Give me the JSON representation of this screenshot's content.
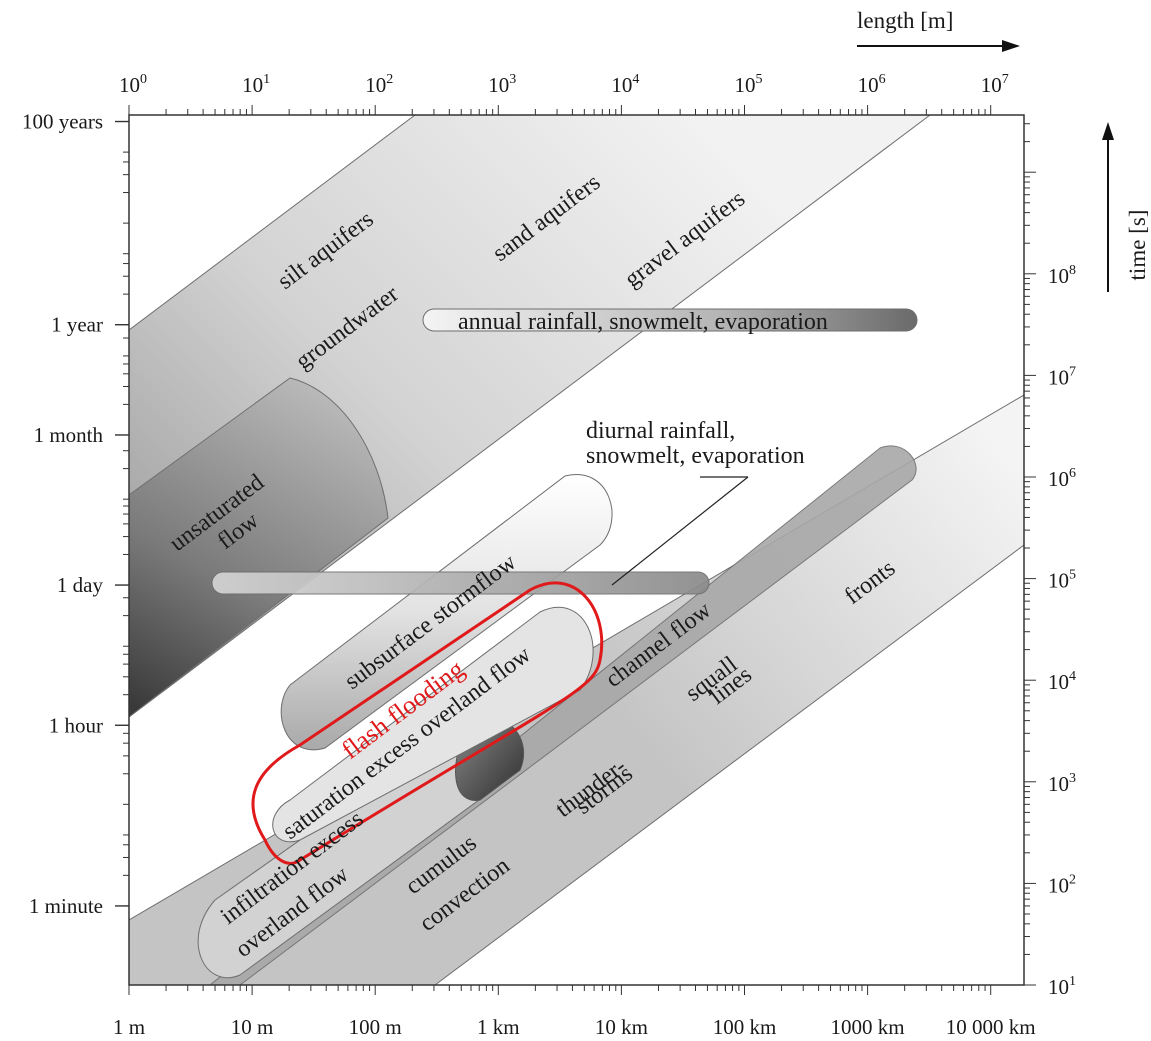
{
  "chart_data": {
    "type": "diagram",
    "x_axis": {
      "title": "length [m]",
      "scale": "log",
      "range": [
        1,
        20000000
      ],
      "top_ticks": [
        {
          "value": 1,
          "base": "10",
          "exp": "0"
        },
        {
          "value": 10,
          "base": "10",
          "exp": "1"
        },
        {
          "value": 100,
          "base": "10",
          "exp": "2"
        },
        {
          "value": 1000,
          "base": "10",
          "exp": "3"
        },
        {
          "value": 10000,
          "base": "10",
          "exp": "4"
        },
        {
          "value": 100000,
          "base": "10",
          "exp": "5"
        },
        {
          "value": 1000000,
          "base": "10",
          "exp": "6"
        },
        {
          "value": 10000000,
          "base": "10",
          "exp": "7"
        }
      ],
      "bottom_ticks": [
        {
          "value": 1,
          "label": "1 m"
        },
        {
          "value": 10,
          "label": "10 m"
        },
        {
          "value": 100,
          "label": "100 m"
        },
        {
          "value": 1000,
          "label": "1 km"
        },
        {
          "value": 10000,
          "label": "10 km"
        },
        {
          "value": 100000,
          "label": "100 km"
        },
        {
          "value": 1000000,
          "label": "1000 km"
        },
        {
          "value": 10000000,
          "label": "10 000 km"
        }
      ]
    },
    "y_axis": {
      "title": "time [s]",
      "scale": "log",
      "range": [
        10,
        3156000000
      ],
      "left_ticks": [
        {
          "value": 60,
          "label": "1 minute"
        },
        {
          "value": 3600,
          "label": "1 hour"
        },
        {
          "value": 86400,
          "label": "1 day"
        },
        {
          "value": 2592000,
          "label": "1 month"
        },
        {
          "value": 31536000,
          "label": "1 year"
        },
        {
          "value": 3153600000,
          "label": "100 years"
        }
      ],
      "right_ticks": [
        {
          "value": 10,
          "base": "10",
          "exp": "1"
        },
        {
          "value": 100,
          "base": "10",
          "exp": "2"
        },
        {
          "value": 1000,
          "base": "10",
          "exp": "3"
        },
        {
          "value": 10000,
          "base": "10",
          "exp": "4"
        },
        {
          "value": 100000,
          "base": "10",
          "exp": "5"
        },
        {
          "value": 1000000,
          "base": "10",
          "exp": "6"
        },
        {
          "value": 10000000,
          "base": "10",
          "exp": "7"
        },
        {
          "value": 100000000,
          "base": "10",
          "exp": "8"
        }
      ]
    },
    "regions": [
      {
        "name": "groundwater",
        "labels": [
          "silt aquifers",
          "sand aquifers",
          "gravel aquifers",
          "groundwater"
        ]
      },
      {
        "name": "unsaturated flow",
        "labels": [
          "unsaturated",
          "flow"
        ]
      },
      {
        "name": "annual rainfall, snowmelt, evaporation",
        "x_range": [
          200,
          2000000
        ],
        "time": 31536000
      },
      {
        "name": "diurnal rainfall, snowmelt, evaporation",
        "labels": [
          "diurnal rainfall,",
          "snowmelt, evaporation"
        ],
        "x_range": [
          5,
          50000
        ],
        "time": 86400
      },
      {
        "name": "subsurface stormflow"
      },
      {
        "name": "saturation excess overland flow"
      },
      {
        "name": "infiltration excess overland flow",
        "labels": [
          "infiltration excess",
          "overland flow"
        ]
      },
      {
        "name": "channel flow"
      },
      {
        "name": "cumulus convection",
        "labels": [
          "cumulus",
          "convection"
        ]
      },
      {
        "name": "thunderstorms",
        "labels": [
          "thunder-",
          "storms"
        ]
      },
      {
        "name": "squall lines",
        "labels": [
          "squall",
          "lines"
        ]
      },
      {
        "name": "fronts"
      }
    ],
    "highlight": {
      "label": "flash flooding",
      "color": "#e0191a"
    }
  }
}
